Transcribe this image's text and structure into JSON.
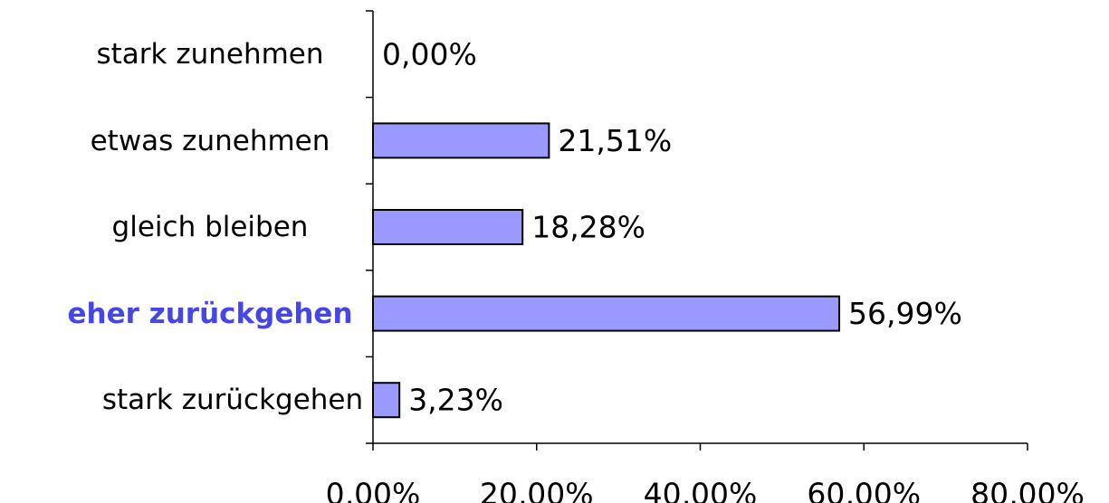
{
  "chart_data": {
    "type": "hbar",
    "categories": [
      "stark zunehmen",
      "etwas zunehmen",
      "gleich bleiben",
      "eher zurückgehen",
      "stark zurückgehen"
    ],
    "values": [
      0,
      21.51,
      18.28,
      56.99,
      3.23
    ],
    "value_labels": [
      "0,00%",
      "21,51%",
      "18,28%",
      "56,99%",
      "3,23%"
    ],
    "color": "#9999ff",
    "xlim": [
      0,
      80
    ],
    "xticks": [
      {
        "value": 0,
        "label": "0,00%"
      },
      {
        "value": 20,
        "label": "20,00%"
      },
      {
        "value": 40,
        "label": "40,00%"
      },
      {
        "value": 60,
        "label": "60,00%"
      },
      {
        "value": 80,
        "label": "80,00%"
      }
    ],
    "grid": false
  }
}
